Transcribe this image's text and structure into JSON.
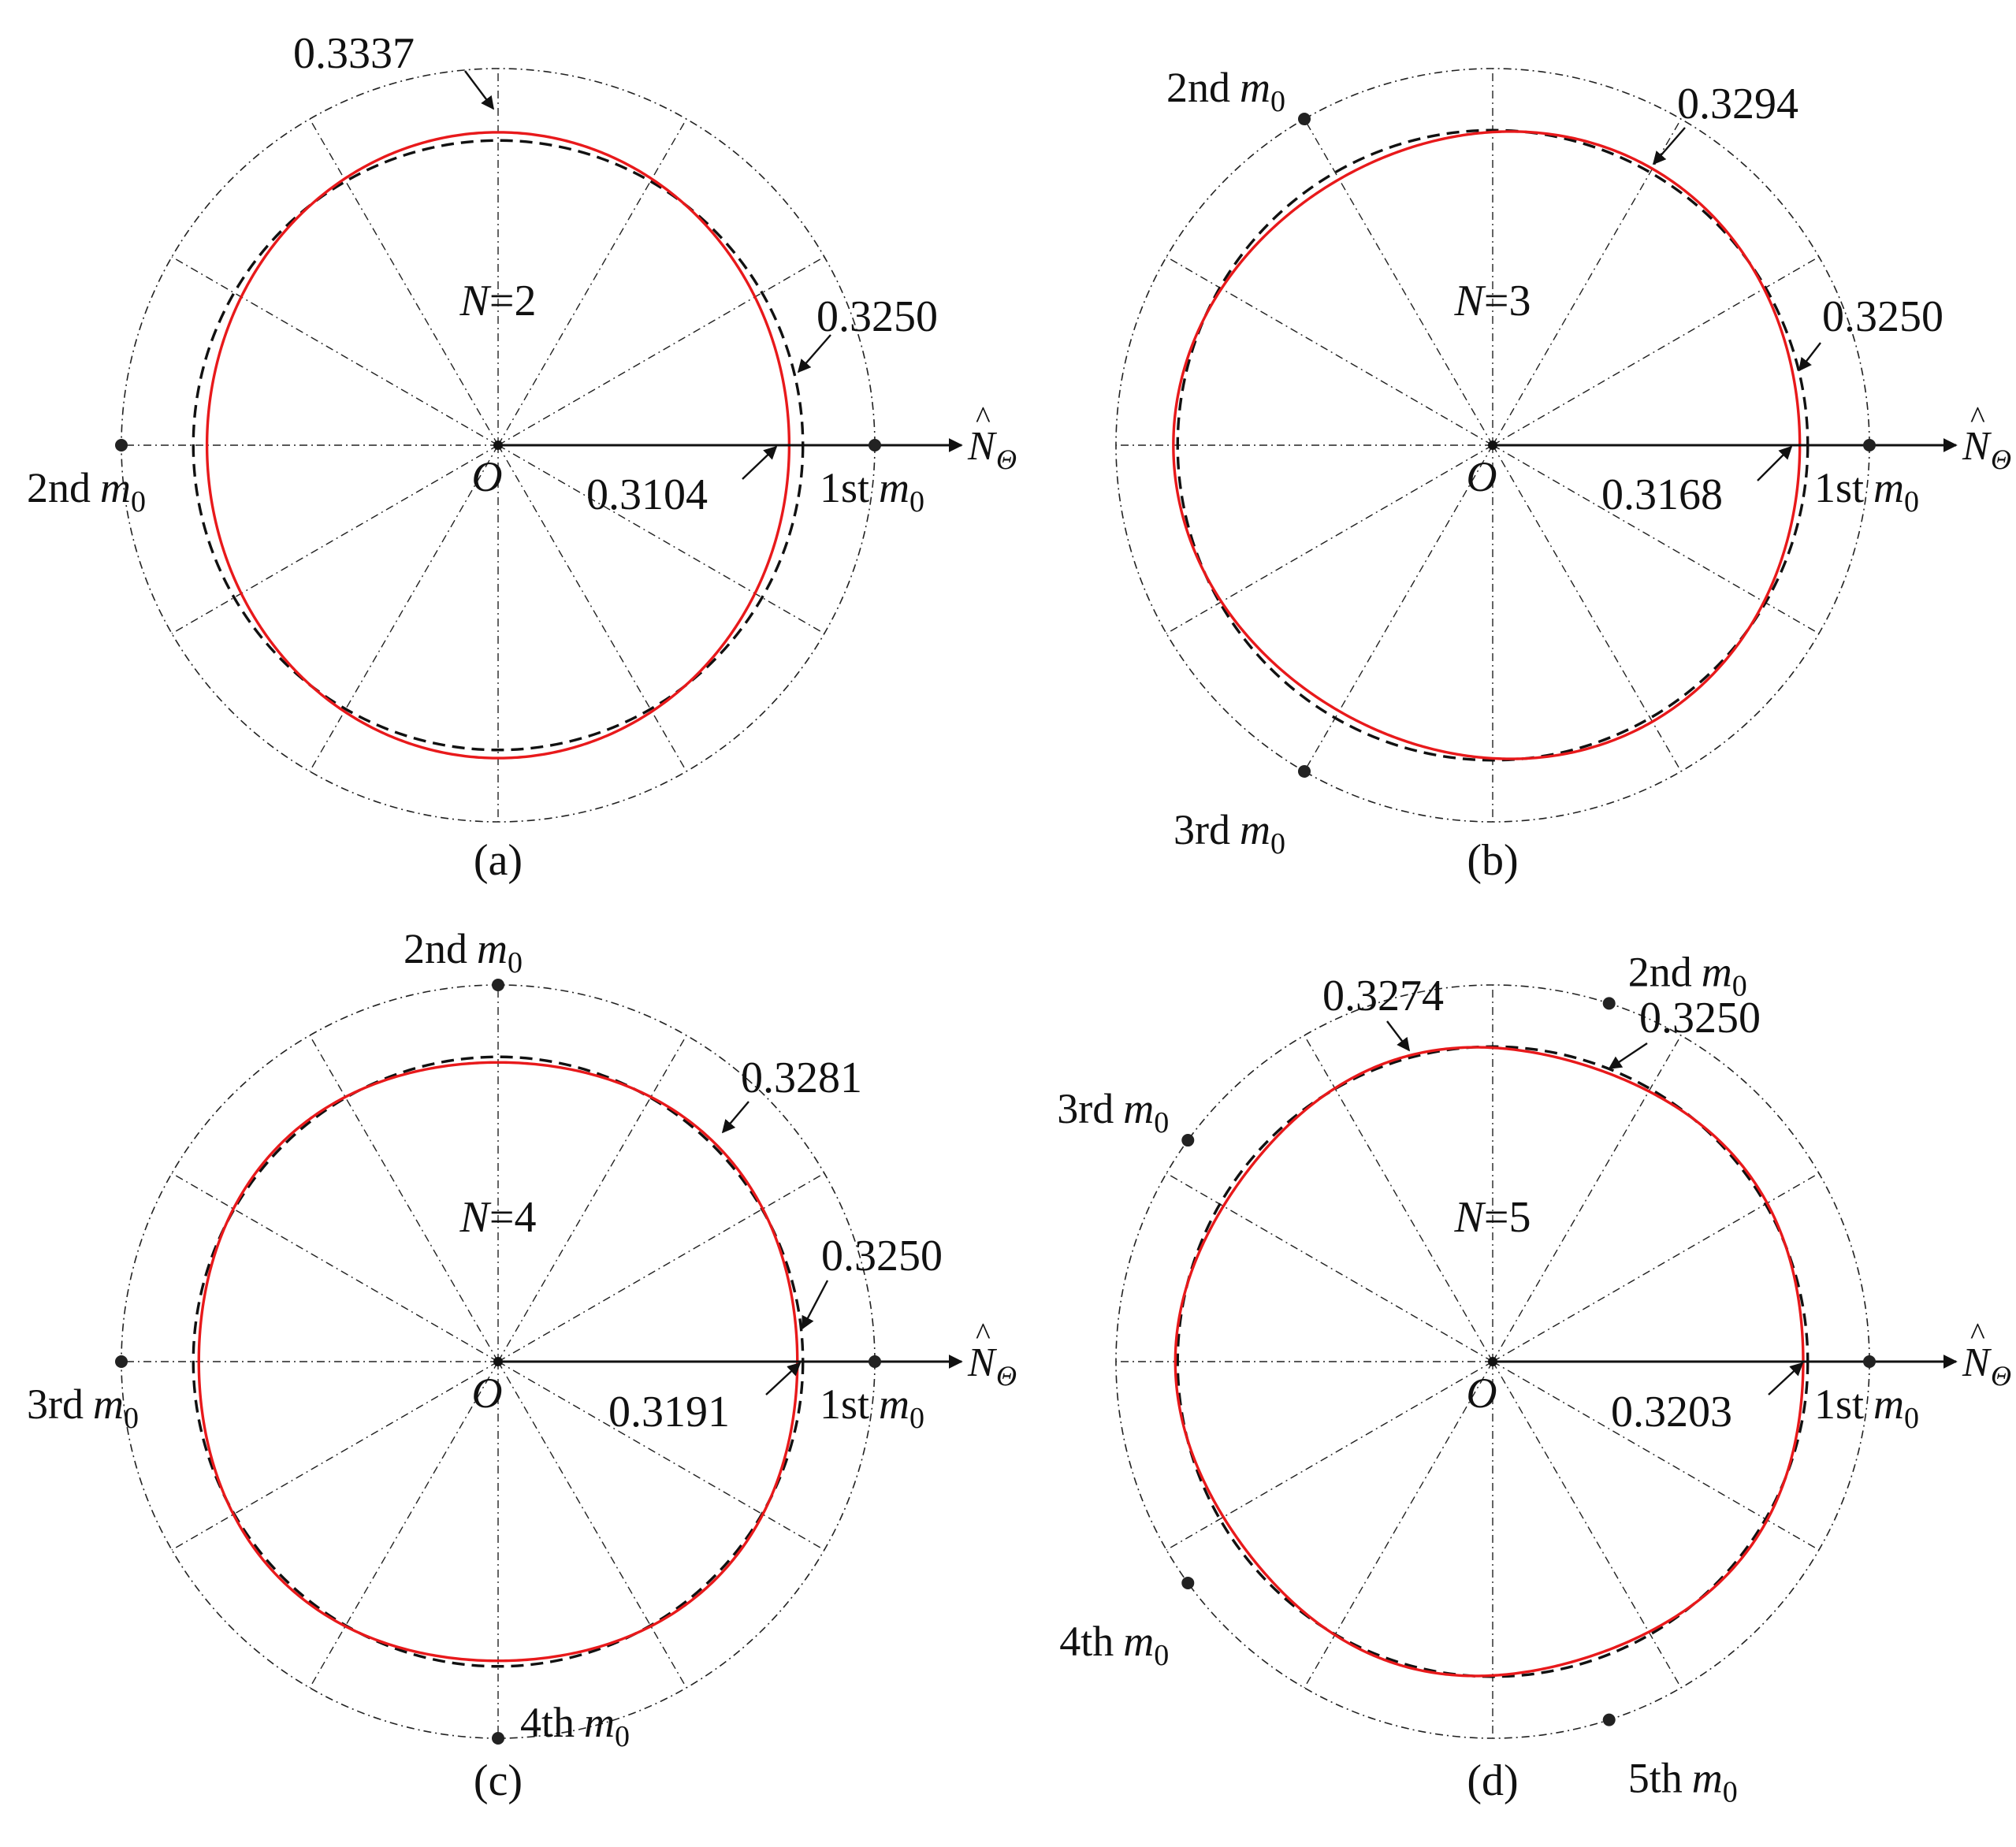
{
  "figure": {
    "unit_symbol": "m",
    "unit_subscript": "0",
    "axis_label": "N",
    "axis_label_subscript": "Θ",
    "axis_hat": "^",
    "origin_label": "O",
    "reference_color": "#111111",
    "curve_color": "#e8191b"
  },
  "chart_data": [
    {
      "type": "polar-line",
      "caption": "(a)",
      "n_label": "N",
      "n_value": "=2",
      "N": 2,
      "reference_radius": 0.325,
      "r_max": 0.3337,
      "r_min": 0.3104,
      "annotations": [
        "0.3337",
        "0.3250",
        "0.3104"
      ],
      "mass_markers": [
        {
          "ordinal": "1st",
          "angle_deg": 0
        },
        {
          "ordinal": "2nd",
          "angle_deg": 180
        }
      ]
    },
    {
      "type": "polar-line",
      "caption": "(b)",
      "n_label": "N",
      "n_value": "=3",
      "N": 3,
      "reference_radius": 0.325,
      "r_max": 0.3294,
      "r_min": 0.3168,
      "annotations": [
        "0.3294",
        "0.3250",
        "0.3168"
      ],
      "mass_markers": [
        {
          "ordinal": "1st",
          "angle_deg": 0
        },
        {
          "ordinal": "2nd",
          "angle_deg": 120
        },
        {
          "ordinal": "3rd",
          "angle_deg": 240
        }
      ]
    },
    {
      "type": "polar-line",
      "caption": "(c)",
      "n_label": "N",
      "n_value": "=4",
      "N": 4,
      "reference_radius": 0.325,
      "r_max": 0.3281,
      "r_min": 0.3191,
      "annotations": [
        "0.3281",
        "0.3250",
        "0.3191"
      ],
      "mass_markers": [
        {
          "ordinal": "1st",
          "angle_deg": 0
        },
        {
          "ordinal": "2nd",
          "angle_deg": 90
        },
        {
          "ordinal": "3rd",
          "angle_deg": 180
        },
        {
          "ordinal": "4th",
          "angle_deg": 270
        }
      ]
    },
    {
      "type": "polar-line",
      "caption": "(d)",
      "n_label": "N",
      "n_value": "=5",
      "N": 5,
      "reference_radius": 0.325,
      "r_max": 0.3274,
      "r_min": 0.3203,
      "annotations": [
        "0.3274",
        "0.3250",
        "0.3203"
      ],
      "mass_markers": [
        {
          "ordinal": "1st",
          "angle_deg": 0
        },
        {
          "ordinal": "2nd",
          "angle_deg": 72
        },
        {
          "ordinal": "3rd",
          "angle_deg": 144
        },
        {
          "ordinal": "4th",
          "angle_deg": 216
        },
        {
          "ordinal": "5th",
          "angle_deg": 288
        }
      ]
    }
  ]
}
